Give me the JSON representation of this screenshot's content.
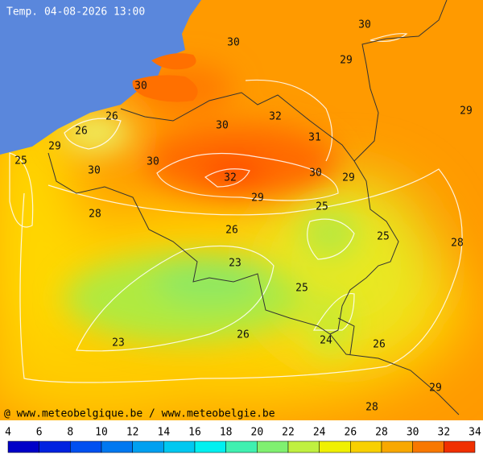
{
  "title": "Temp. 04-08-2026 13:00",
  "credit": "@ www.meteobelgique.be / www.meteobelgie.be",
  "map_labels": [
    30,
    30,
    29,
    30,
    29,
    26,
    26,
    30,
    32,
    31,
    29,
    25,
    30,
    30,
    32,
    30,
    29,
    29,
    25,
    28,
    26,
    25,
    28,
    23,
    25,
    26,
    24,
    26,
    23,
    29,
    28
  ],
  "legend_ticks": [
    4,
    6,
    8,
    10,
    12,
    14,
    16,
    18,
    20,
    22,
    24,
    26,
    28,
    30,
    32,
    34
  ]
}
